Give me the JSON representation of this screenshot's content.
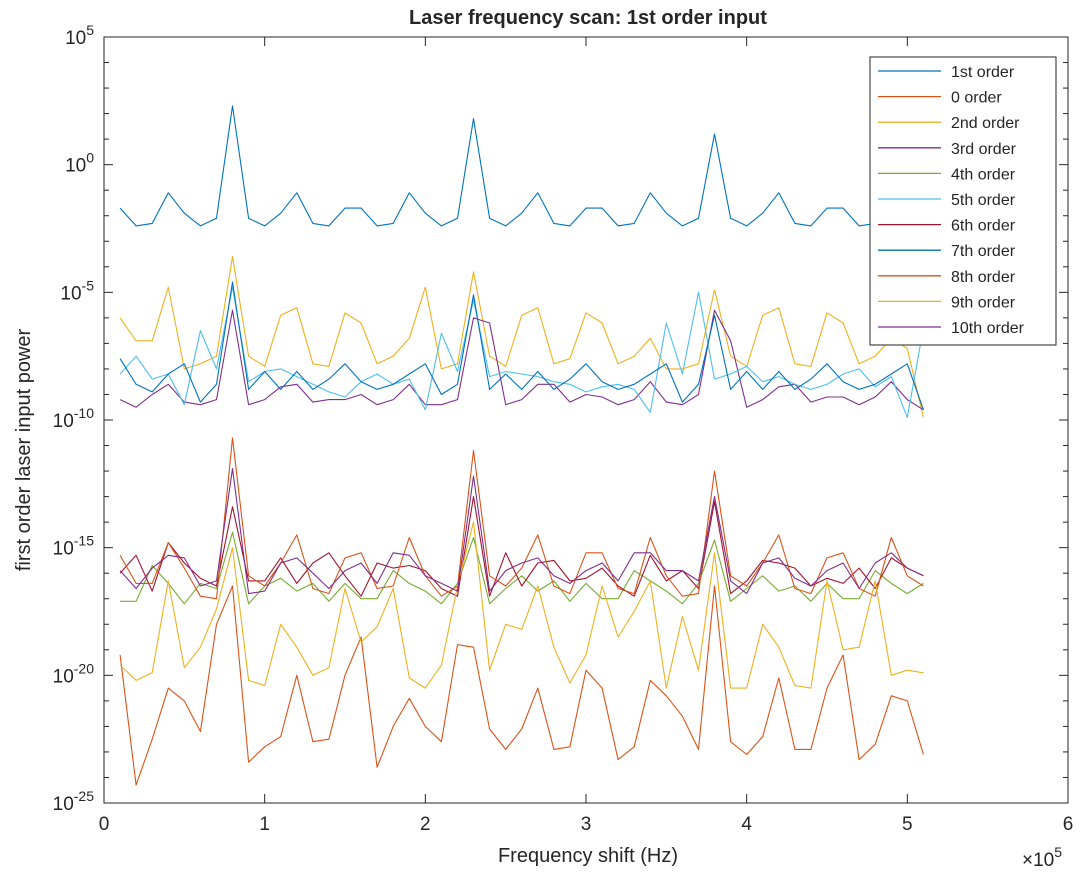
{
  "chart_data": {
    "type": "line",
    "title": "Laser frequency scan: 1st order input",
    "xlabel": "Frequency shift (Hz)",
    "ylabel": "first order laser input power",
    "xlim": [
      0,
      6
    ],
    "x_multiplier_label": "×10",
    "x_multiplier_exp": "5",
    "x_unit_multiplier": 100000,
    "yscale": "log",
    "ylim_exp": [
      -25,
      5
    ],
    "x_ticks": [
      {
        "value": 0,
        "label": "0"
      },
      {
        "value": 1,
        "label": "1"
      },
      {
        "value": 2,
        "label": "2"
      },
      {
        "value": 3,
        "label": "3"
      },
      {
        "value": 4,
        "label": "4"
      },
      {
        "value": 5,
        "label": "5"
      },
      {
        "value": 6,
        "label": "6"
      }
    ],
    "y_ticks": [
      {
        "exp": 5,
        "base": "10",
        "sup": "5"
      },
      {
        "exp": 0,
        "base": "10",
        "sup": "0"
      },
      {
        "exp": -5,
        "base": "10",
        "sup": "-5"
      },
      {
        "exp": -10,
        "base": "10",
        "sup": "-10"
      },
      {
        "exp": -15,
        "base": "10",
        "sup": "-15"
      },
      {
        "exp": -20,
        "base": "10",
        "sup": "-20"
      },
      {
        "exp": -25,
        "base": "10",
        "sup": "-25"
      }
    ],
    "grid": false,
    "legend_position": "top-right",
    "x": [
      0.1,
      0.2,
      0.3,
      0.4,
      0.5,
      0.6,
      0.7,
      0.8,
      0.9,
      1.0,
      1.1,
      1.2,
      1.3,
      1.4,
      1.5,
      1.6,
      1.7,
      1.8,
      1.9,
      2.0,
      2.1,
      2.2,
      2.3,
      2.4,
      2.5,
      2.6,
      2.7,
      2.8,
      2.9,
      3.0,
      3.1,
      3.2,
      3.3,
      3.4,
      3.5,
      3.6,
      3.7,
      3.8,
      3.9,
      4.0,
      4.1,
      4.2,
      4.3,
      4.4,
      4.5,
      4.6,
      4.7,
      4.8,
      4.9,
      5.0,
      5.1
    ],
    "series": [
      {
        "name": "1st order",
        "color": "#0072BD",
        "log10_values": [
          -1.7,
          -2.4,
          -2.3,
          -1.1,
          -1.9,
          -2.4,
          -2.1,
          2.3,
          -2.1,
          -2.4,
          -1.9,
          -1.1,
          -2.3,
          -2.4,
          -1.7,
          -1.7,
          -2.4,
          -2.3,
          -1.1,
          -1.9,
          -2.4,
          -2.1,
          1.8,
          -2.1,
          -2.4,
          -1.9,
          -1.1,
          -2.3,
          -2.4,
          -1.7,
          -1.7,
          -2.4,
          -2.3,
          -1.1,
          -1.9,
          -2.4,
          -2.1,
          1.2,
          -2.1,
          -2.4,
          -1.9,
          -1.1,
          -2.3,
          -2.4,
          -1.7,
          -1.7,
          -2.4,
          -2.3,
          -1.1,
          -1.9,
          -2.4
        ]
      },
      {
        "name": "0 order",
        "color": "#D95319",
        "log10_values": [
          -19.2,
          -24.3,
          -22.5,
          -20.5,
          -21.0,
          -22.2,
          -18.0,
          -16.5,
          -23.4,
          -22.8,
          -22.4,
          -20.0,
          -22.6,
          -22.5,
          -20.0,
          -18.5,
          -23.6,
          -22.0,
          -20.9,
          -22.0,
          -22.6,
          -18.8,
          -18.9,
          -22.1,
          -22.9,
          -22.1,
          -20.5,
          -22.9,
          -22.8,
          -19.8,
          -20.5,
          -23.3,
          -22.8,
          -20.2,
          -20.8,
          -21.6,
          -22.9,
          -16.5,
          -22.6,
          -23.1,
          -22.4,
          -20.1,
          -22.9,
          -22.9,
          -20.5,
          -19.2,
          -23.3,
          -22.7,
          -20.8,
          -21.0,
          -23.1
        ]
      },
      {
        "name": "2nd order",
        "color": "#EDB120",
        "log10_values": [
          -6.0,
          -6.9,
          -6.9,
          -4.8,
          -8.0,
          -7.8,
          -7.5,
          -3.6,
          -7.5,
          -7.9,
          -5.9,
          -5.6,
          -7.8,
          -7.9,
          -5.8,
          -6.2,
          -7.8,
          -7.5,
          -6.8,
          -4.8,
          -8.0,
          -7.8,
          -4.2,
          -7.5,
          -7.9,
          -5.9,
          -5.6,
          -7.8,
          -7.6,
          -5.8,
          -6.2,
          -7.8,
          -7.5,
          -6.8,
          -8.0,
          -8.0,
          -7.8,
          -4.9,
          -7.5,
          -7.9,
          -5.9,
          -5.6,
          -7.8,
          -7.9,
          -5.8,
          -6.2,
          -7.8,
          -7.5,
          -6.8,
          -7.2,
          -9.9
        ]
      },
      {
        "name": "3rd order",
        "color": "#7E2F8E",
        "log10_values": [
          -9.2,
          -9.5,
          -9.0,
          -8.6,
          -9.3,
          -9.4,
          -9.2,
          -5.7,
          -9.4,
          -9.2,
          -8.7,
          -8.6,
          -9.3,
          -9.2,
          -9.2,
          -9.0,
          -9.4,
          -9.2,
          -8.6,
          -9.4,
          -9.4,
          -9.2,
          -6.0,
          -6.2,
          -9.4,
          -9.2,
          -8.6,
          -8.6,
          -9.3,
          -9.0,
          -9.1,
          -9.4,
          -9.2,
          -8.5,
          -9.3,
          -9.4,
          -9.0,
          -5.7,
          -6.9,
          -9.5,
          -9.2,
          -8.7,
          -8.6,
          -9.3,
          -9.1,
          -9.1,
          -9.4,
          -9.1,
          -8.5,
          -9.2,
          -9.6
        ]
      },
      {
        "name": "4th order",
        "color": "#77AC30",
        "log10_values": [
          -17.1,
          -17.1,
          -15.7,
          -16.4,
          -17.2,
          -16.4,
          -16.6,
          -14.4,
          -17.2,
          -16.5,
          -16.2,
          -16.7,
          -16.4,
          -17.1,
          -16.4,
          -17.0,
          -17.0,
          -15.9,
          -16.4,
          -16.7,
          -17.2,
          -16.4,
          -14.6,
          -17.2,
          -16.6,
          -16.1,
          -16.7,
          -16.3,
          -17.1,
          -16.4,
          -17.0,
          -17.0,
          -15.9,
          -16.3,
          -16.7,
          -17.2,
          -16.4,
          -14.7,
          -17.1,
          -16.6,
          -16.1,
          -16.7,
          -16.5,
          -17.1,
          -16.4,
          -17.0,
          -17.0,
          -15.9,
          -16.4,
          -16.8,
          -16.4
        ]
      },
      {
        "name": "5th order",
        "color": "#4DBEEE",
        "log10_values": [
          -8.2,
          -7.5,
          -8.4,
          -8.2,
          -9.4,
          -6.5,
          -8.0,
          -4.8,
          -8.5,
          -8.1,
          -8.0,
          -8.3,
          -8.6,
          -8.9,
          -9.1,
          -8.5,
          -8.2,
          -8.6,
          -8.4,
          -9.6,
          -6.6,
          -8.1,
          -5.3,
          -8.3,
          -8.1,
          -8.2,
          -8.3,
          -8.5,
          -8.6,
          -8.9,
          -8.7,
          -8.6,
          -8.8,
          -9.7,
          -6.2,
          -8.2,
          -5.0,
          -8.4,
          -8.2,
          -7.9,
          -8.5,
          -8.3,
          -8.6,
          -8.8,
          -8.6,
          -8.2,
          -8.0,
          -8.7,
          -8.3,
          -9.9,
          -6.4
        ]
      },
      {
        "name": "6th order",
        "color": "#A2142F",
        "log10_values": [
          -16.0,
          -15.3,
          -16.7,
          -14.8,
          -15.6,
          -16.2,
          -16.5,
          -13.4,
          -16.3,
          -16.3,
          -15.4,
          -16.4,
          -15.6,
          -15.2,
          -16.1,
          -16.9,
          -15.6,
          -15.8,
          -15.7,
          -15.9,
          -16.6,
          -16.9,
          -13.0,
          -16.9,
          -15.2,
          -16.5,
          -15.6,
          -15.5,
          -16.3,
          -16.2,
          -15.8,
          -16.5,
          -16.9,
          -15.3,
          -16.3,
          -15.9,
          -16.6,
          -13.2,
          -16.8,
          -16.3,
          -15.5,
          -15.6,
          -15.8,
          -16.5,
          -16.2,
          -16.4,
          -15.8,
          -16.6,
          -15.4,
          -15.8,
          -16.1
        ]
      },
      {
        "name": "7th order",
        "color": "#0072BD",
        "log10_values": [
          -7.6,
          -8.6,
          -8.9,
          -8.2,
          -7.8,
          -9.3,
          -8.6,
          -4.6,
          -8.8,
          -8.1,
          -8.8,
          -8.1,
          -8.8,
          -8.4,
          -7.8,
          -8.5,
          -8.8,
          -8.6,
          -8.2,
          -7.8,
          -9.0,
          -8.6,
          -5.1,
          -8.8,
          -8.2,
          -8.8,
          -8.1,
          -8.8,
          -8.4,
          -7.8,
          -8.5,
          -8.8,
          -8.6,
          -8.2,
          -7.8,
          -9.3,
          -8.6,
          -5.9,
          -8.8,
          -8.1,
          -8.8,
          -8.1,
          -8.8,
          -8.4,
          -7.8,
          -8.5,
          -8.8,
          -8.6,
          -8.2,
          -7.8,
          -9.6
        ]
      },
      {
        "name": "8th order",
        "color": "#D95319",
        "log10_values": [
          -15.3,
          -16.4,
          -16.4,
          -14.8,
          -15.8,
          -16.9,
          -17.0,
          -10.7,
          -16.1,
          -16.5,
          -15.6,
          -14.5,
          -16.6,
          -16.8,
          -15.4,
          -15.2,
          -16.6,
          -16.5,
          -14.6,
          -16.1,
          -16.9,
          -16.5,
          -11.2,
          -16.1,
          -16.5,
          -15.8,
          -14.5,
          -16.5,
          -16.8,
          -15.2,
          -15.2,
          -16.6,
          -16.8,
          -14.6,
          -16.1,
          -16.9,
          -16.8,
          -12.0,
          -16.1,
          -16.5,
          -15.6,
          -14.5,
          -16.6,
          -16.8,
          -15.4,
          -15.2,
          -16.6,
          -16.9,
          -14.6,
          -16.1,
          -16.5
        ]
      },
      {
        "name": "9th order",
        "color": "#EDB120",
        "log10_values": [
          -19.6,
          -20.2,
          -19.9,
          -16.3,
          -19.7,
          -18.9,
          -17.4,
          -15.0,
          -20.2,
          -20.4,
          -18.0,
          -18.9,
          -20.0,
          -19.7,
          -16.6,
          -18.7,
          -18.1,
          -16.6,
          -20.1,
          -20.5,
          -19.6,
          -16.5,
          -14.0,
          -19.8,
          -18.0,
          -18.2,
          -16.5,
          -18.9,
          -20.3,
          -19.2,
          -16.5,
          -18.5,
          -17.5,
          -16.3,
          -20.5,
          -17.7,
          -19.8,
          -15.2,
          -20.5,
          -20.5,
          -18.0,
          -18.9,
          -20.4,
          -20.5,
          -16.3,
          -19.0,
          -18.9,
          -16.3,
          -20.0,
          -19.8,
          -19.9
        ]
      },
      {
        "name": "10th order",
        "color": "#7E2F8E",
        "log10_values": [
          -15.9,
          -16.6,
          -15.8,
          -15.3,
          -15.4,
          -16.5,
          -16.3,
          -11.9,
          -16.8,
          -16.7,
          -15.6,
          -15.4,
          -16.0,
          -16.6,
          -15.9,
          -15.6,
          -16.4,
          -15.2,
          -15.3,
          -16.1,
          -16.4,
          -16.7,
          -12.2,
          -16.7,
          -15.9,
          -15.6,
          -15.4,
          -16.1,
          -16.4,
          -15.9,
          -15.6,
          -16.3,
          -15.2,
          -15.2,
          -15.9,
          -15.9,
          -16.3,
          -13.0,
          -16.3,
          -16.8,
          -15.6,
          -15.4,
          -16.2,
          -16.5,
          -15.9,
          -15.6,
          -16.6,
          -15.6,
          -15.2,
          -15.8,
          -16.1
        ]
      }
    ]
  }
}
